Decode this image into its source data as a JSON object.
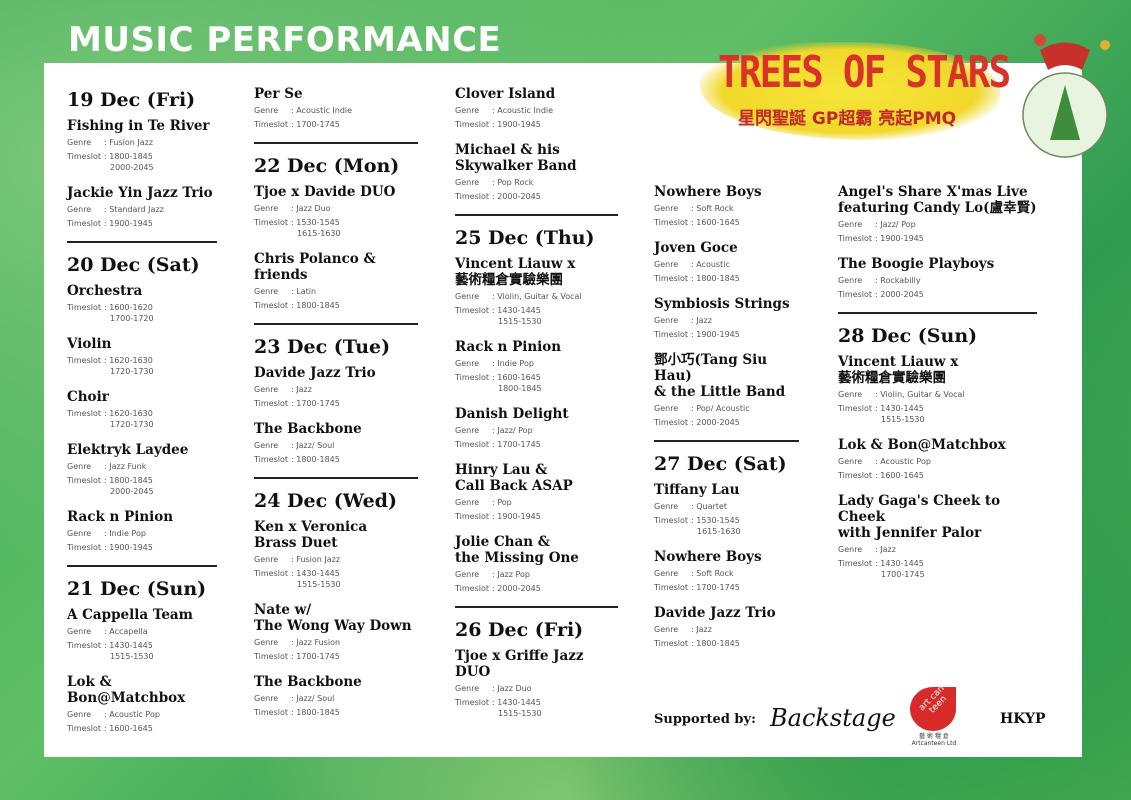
{
  "title": "MUSIC PERFORMANCE",
  "logo": {
    "main": "TREES OF STARS",
    "sub": "星閃聖誕  GP超霸  亮起PMQ"
  },
  "labels": {
    "genre": "Genre",
    "timeslot": "Timeslot"
  },
  "columns": [
    [
      {
        "type": "day",
        "label": "19 Dec (Fri)"
      },
      {
        "type": "act",
        "name": "Fishing in Te River",
        "genre": "Fusion Jazz",
        "timeslot": [
          "1800-1845",
          "2000-2045"
        ]
      },
      {
        "type": "act",
        "name": "Jackie Yin Jazz Trio",
        "genre": "Standard Jazz",
        "timeslot": [
          "1900-1945"
        ]
      },
      {
        "type": "divider"
      },
      {
        "type": "day",
        "label": "20 Dec (Sat)"
      },
      {
        "type": "act",
        "name": "Orchestra",
        "timeslot": [
          "1600-1620",
          "1700-1720"
        ]
      },
      {
        "type": "act",
        "name": "Violin",
        "timeslot": [
          "1620-1630",
          "1720-1730"
        ]
      },
      {
        "type": "act",
        "name": "Choir",
        "timeslot": [
          "1620-1630",
          "1720-1730"
        ]
      },
      {
        "type": "act",
        "name": "Elektryk Laydee",
        "genre": "Jazz Funk",
        "timeslot": [
          "1800-1845",
          "2000-2045"
        ]
      },
      {
        "type": "act",
        "name": "Rack n Pinion",
        "genre": "Indie Pop",
        "timeslot": [
          "1900-1945"
        ]
      },
      {
        "type": "divider"
      },
      {
        "type": "day",
        "label": "21 Dec (Sun)"
      },
      {
        "type": "act",
        "name": "A Cappella Team",
        "genre": "Accapella",
        "timeslot": [
          "1430-1445",
          "1515-1530"
        ]
      },
      {
        "type": "act",
        "name": "Lok & Bon@Matchbox",
        "genre": "Acoustic Pop",
        "timeslot": [
          "1600-1645"
        ]
      }
    ],
    [
      {
        "type": "act",
        "name": "Per Se",
        "genre": "Acoustic Indie",
        "timeslot": [
          "1700-1745"
        ]
      },
      {
        "type": "divider"
      },
      {
        "type": "day",
        "label": "22 Dec (Mon)"
      },
      {
        "type": "act",
        "name": "Tjoe x Davide DUO",
        "genre": "Jazz Duo",
        "timeslot": [
          "1530-1545",
          "1615-1630"
        ]
      },
      {
        "type": "act",
        "name": "Chris Polanco & friends",
        "genre": "Latin",
        "timeslot": [
          "1800-1845"
        ]
      },
      {
        "type": "divider"
      },
      {
        "type": "day",
        "label": "23 Dec (Tue)"
      },
      {
        "type": "act",
        "name": "Davide Jazz Trio",
        "genre": "Jazz",
        "timeslot": [
          "1700-1745"
        ]
      },
      {
        "type": "act",
        "name": "The Backbone",
        "genre": "Jazz/ Soul",
        "timeslot": [
          "1800-1845"
        ]
      },
      {
        "type": "divider"
      },
      {
        "type": "day",
        "label": "24 Dec (Wed)"
      },
      {
        "type": "act",
        "name": "Ken x Veronica\nBrass Duet",
        "genre": "Fusion Jazz",
        "timeslot": [
          "1430-1445",
          "1515-1530"
        ]
      },
      {
        "type": "act",
        "name": "Nate w/\nThe Wong Way Down",
        "genre": "Jazz Fusion",
        "timeslot": [
          "1700-1745"
        ]
      },
      {
        "type": "act",
        "name": "The Backbone",
        "genre": "Jazz/ Soul",
        "timeslot": [
          "1800-1845"
        ]
      }
    ],
    [
      {
        "type": "act",
        "name": "Clover Island",
        "genre": "Acoustic Indie",
        "timeslot": [
          "1900-1945"
        ]
      },
      {
        "type": "act",
        "name": "Michael & his\nSkywalker Band",
        "genre": "Pop Rock",
        "timeslot": [
          "2000-2045"
        ]
      },
      {
        "type": "divider"
      },
      {
        "type": "day",
        "label": "25 Dec (Thu)"
      },
      {
        "type": "act",
        "name": "Vincent Liauw x\n藝術糧倉實驗樂團",
        "genre": "Violin, Guitar & Vocal",
        "timeslot": [
          "1430-1445",
          "1515-1530"
        ]
      },
      {
        "type": "act",
        "name": "Rack n Pinion",
        "genre": "Indie Pop",
        "timeslot": [
          "1600-1645",
          "1800-1845"
        ]
      },
      {
        "type": "act",
        "name": "Danish Delight",
        "genre": "Jazz/ Pop",
        "timeslot": [
          "1700-1745"
        ]
      },
      {
        "type": "act",
        "name": "Hinry Lau &\nCall Back ASAP",
        "genre": "Pop",
        "timeslot": [
          "1900-1945"
        ]
      },
      {
        "type": "act",
        "name": "Jolie Chan &\nthe Missing One",
        "genre": "Jazz Pop",
        "timeslot": [
          "2000-2045"
        ]
      },
      {
        "type": "divider"
      },
      {
        "type": "day",
        "label": "26 Dec (Fri)"
      },
      {
        "type": "act",
        "name": "Tjoe x Griffe Jazz DUO",
        "genre": "Jazz Duo",
        "timeslot": [
          "1430-1445",
          "1515-1530"
        ]
      }
    ],
    [
      {
        "type": "act",
        "name": "Nowhere Boys",
        "genre": "Soft Rock",
        "timeslot": [
          "1600-1645"
        ]
      },
      {
        "type": "act",
        "name": "Joven Goce",
        "genre": "Acoustic",
        "timeslot": [
          "1800-1845"
        ]
      },
      {
        "type": "act",
        "name": "Symbiosis Strings",
        "genre": "Jazz",
        "timeslot": [
          "1900-1945"
        ]
      },
      {
        "type": "act",
        "name": "鄧小巧(Tang Siu Hau)\n& the Little Band",
        "genre": "Pop/ Acoustic",
        "timeslot": [
          "2000-2045"
        ]
      },
      {
        "type": "divider"
      },
      {
        "type": "day",
        "label": "27 Dec (Sat)"
      },
      {
        "type": "act",
        "name": "Tiffany Lau",
        "genre": "Quartet",
        "timeslot": [
          "1530-1545",
          "1615-1630"
        ]
      },
      {
        "type": "act",
        "name": "Nowhere Boys",
        "genre": "Soft Rock",
        "timeslot": [
          "1700-1745"
        ]
      },
      {
        "type": "act",
        "name": "Davide Jazz Trio",
        "genre": "Jazz",
        "timeslot": [
          "1800-1845"
        ]
      }
    ],
    [
      {
        "type": "act",
        "name": "Angel's Share X'mas Live\nfeaturing Candy Lo(盧幸賢)",
        "genre": "Jazz/ Pop",
        "timeslot": [
          "1900-1945"
        ]
      },
      {
        "type": "act",
        "name": "The Boogie Playboys",
        "genre": "Rockabilly",
        "timeslot": [
          "2000-2045"
        ]
      },
      {
        "type": "divider"
      },
      {
        "type": "day",
        "label": "28 Dec (Sun)"
      },
      {
        "type": "act",
        "name": "Vincent Liauw x\n藝術糧倉實驗樂團",
        "genre": "Violin, Guitar & Vocal",
        "timeslot": [
          "1430-1445",
          "1515-1530"
        ]
      },
      {
        "type": "act",
        "name": "Lok & Bon@Matchbox",
        "genre": "Acoustic Pop",
        "timeslot": [
          "1600-1645"
        ]
      },
      {
        "type": "act",
        "name": "Lady Gaga's Cheek to Cheek\nwith Jennifer Palor",
        "genre": "Jazz",
        "timeslot": [
          "1430-1445",
          "1700-1745"
        ]
      }
    ]
  ],
  "sponsors": {
    "label": "Supported by:",
    "backstage": "Backstage",
    "artcanteen": "art can teen",
    "artcanteen_sub": "藝 術 糧 倉\nArtcanteen Ltd",
    "hkyp": "HKYP"
  },
  "colors": {
    "background": "#4fb25c",
    "logo_yellow": "#f3dc2c",
    "logo_red": "#d8322a",
    "artcanteen_red": "#d92a2a"
  }
}
